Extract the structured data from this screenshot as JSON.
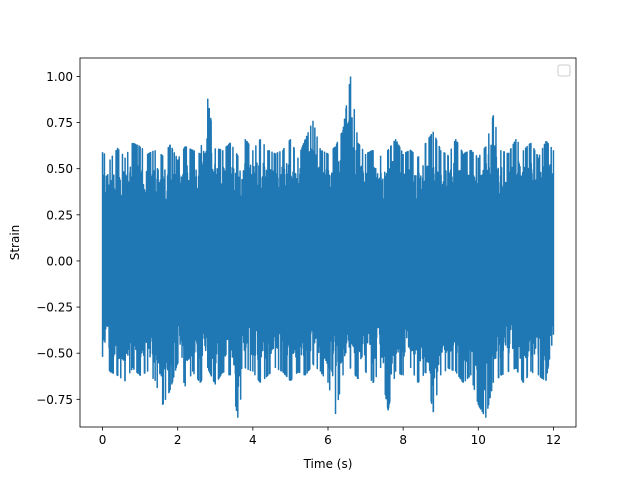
{
  "chart_data": {
    "type": "line",
    "title": "",
    "xlabel": "Time (s)",
    "ylabel": "Strain",
    "xlim": [
      -0.6,
      12.6
    ],
    "ylim": [
      -0.9,
      1.1
    ],
    "x_ticks": [
      0,
      2,
      4,
      6,
      8,
      10,
      12
    ],
    "x_tick_labels": [
      "0",
      "2",
      "4",
      "6",
      "8",
      "10",
      "12"
    ],
    "y_ticks": [
      -0.75,
      -0.5,
      -0.25,
      0.0,
      0.25,
      0.5,
      0.75,
      1.0
    ],
    "y_tick_labels": [
      "−0.75",
      "−0.50",
      "−0.25",
      "0.00",
      "0.25",
      "0.50",
      "0.75",
      "1.00"
    ],
    "grid": false,
    "legend": {
      "placement": "upper right",
      "entries": []
    },
    "series": [
      {
        "color": "#1f77b4",
        "x_range": [
          0,
          12
        ],
        "x": [
          0.0,
          0.2,
          0.4,
          0.6,
          0.8,
          1.0,
          1.2,
          1.4,
          1.6,
          1.8,
          2.0,
          2.2,
          2.4,
          2.6,
          2.8,
          3.0,
          3.2,
          3.4,
          3.6,
          3.8,
          4.0,
          4.2,
          4.4,
          4.6,
          4.8,
          5.0,
          5.2,
          5.4,
          5.6,
          5.8,
          6.0,
          6.2,
          6.4,
          6.6,
          6.8,
          7.0,
          7.2,
          7.4,
          7.6,
          7.8,
          8.0,
          8.2,
          8.4,
          8.6,
          8.8,
          9.0,
          9.2,
          9.4,
          9.6,
          9.8,
          10.0,
          10.2,
          10.4,
          10.6,
          10.8,
          11.0,
          11.2,
          11.4,
          11.6,
          11.8,
          12.0
        ],
        "y_max": [
          0.59,
          0.55,
          0.61,
          0.56,
          0.64,
          0.62,
          0.58,
          0.6,
          0.57,
          0.63,
          0.55,
          0.62,
          0.6,
          0.58,
          0.88,
          0.61,
          0.6,
          0.64,
          0.57,
          0.66,
          0.6,
          0.66,
          0.6,
          0.58,
          0.6,
          0.66,
          0.56,
          0.66,
          0.76,
          0.6,
          0.58,
          0.62,
          0.71,
          1.0,
          0.64,
          0.58,
          0.6,
          0.57,
          0.6,
          0.66,
          0.58,
          0.6,
          0.56,
          0.64,
          0.7,
          0.6,
          0.57,
          0.66,
          0.58,
          0.6,
          0.56,
          0.62,
          0.79,
          0.6,
          0.58,
          0.66,
          0.6,
          0.64,
          0.56,
          0.65,
          0.6
        ],
        "y_min": [
          -0.52,
          -0.6,
          -0.62,
          -0.65,
          -0.58,
          -0.62,
          -0.6,
          -0.65,
          -0.78,
          -0.7,
          -0.55,
          -0.68,
          -0.6,
          -0.66,
          -0.58,
          -0.67,
          -0.6,
          -0.62,
          -0.85,
          -0.58,
          -0.6,
          -0.66,
          -0.62,
          -0.58,
          -0.6,
          -0.65,
          -0.6,
          -0.62,
          -0.56,
          -0.6,
          -0.66,
          -0.83,
          -0.62,
          -0.58,
          -0.64,
          -0.6,
          -0.66,
          -0.58,
          -0.81,
          -0.6,
          -0.62,
          -0.58,
          -0.66,
          -0.6,
          -0.82,
          -0.62,
          -0.58,
          -0.6,
          -0.66,
          -0.62,
          -0.78,
          -0.85,
          -0.66,
          -0.62,
          -0.6,
          -0.58,
          -0.66,
          -0.6,
          -0.62,
          -0.65,
          -0.4
        ]
      }
    ]
  }
}
